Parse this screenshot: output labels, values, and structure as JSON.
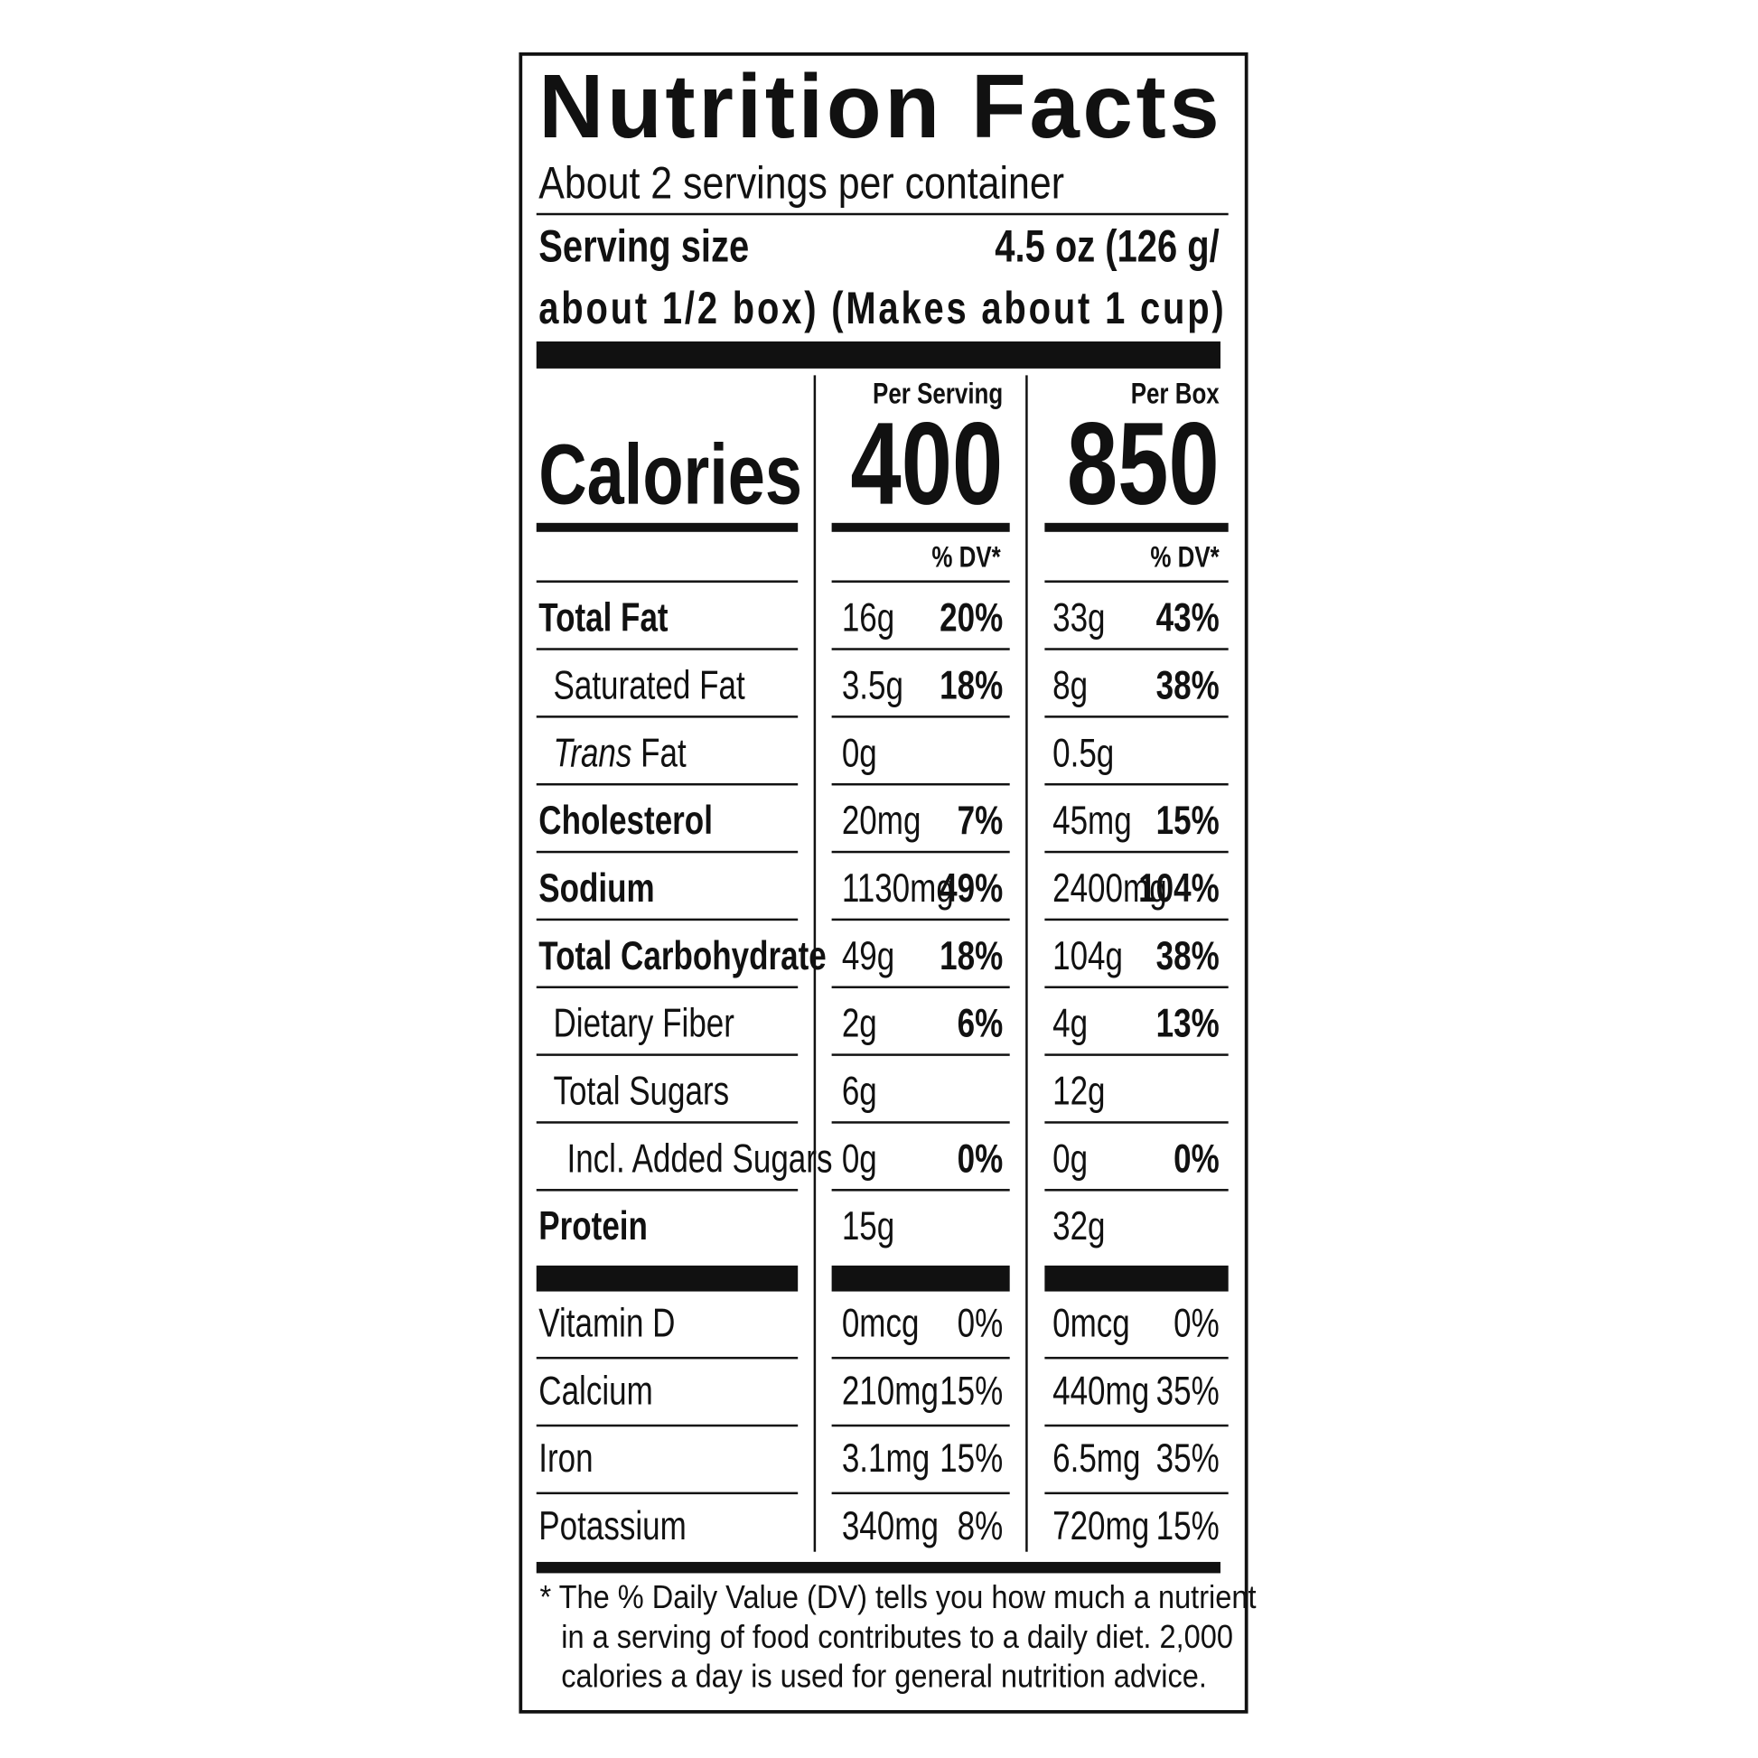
{
  "title": "Nutrition Facts",
  "servings": "About 2 servings per container",
  "serving_size": {
    "label": "Serving size",
    "value_line1": "4.5 oz (126 g/",
    "value_line2": "about 1/2 box) (Makes about 1 cup)"
  },
  "columns": [
    "Per Serving",
    "Per Box"
  ],
  "calories": {
    "label": "Calories",
    "values": [
      400,
      850
    ]
  },
  "dv_headers": [
    "% DV*",
    "% DV*"
  ],
  "nutrients": [
    {
      "label": "Total Fat",
      "bold": true,
      "indent": 0,
      "per_serving": {
        "amount": "16g",
        "dv": "20%"
      },
      "per_box": {
        "amount": "33g",
        "dv": "43%"
      }
    },
    {
      "label": "Saturated Fat",
      "bold": false,
      "indent": 1,
      "per_serving": {
        "amount": "3.5g",
        "dv": "18%"
      },
      "per_box": {
        "amount": "8g",
        "dv": "38%"
      }
    },
    {
      "label_italic": "Trans",
      "label": "Fat",
      "bold": false,
      "indent": 1,
      "per_serving": {
        "amount": "0g"
      },
      "per_box": {
        "amount": "0.5g"
      }
    },
    {
      "label": "Cholesterol",
      "bold": true,
      "indent": 0,
      "per_serving": {
        "amount": "20mg",
        "dv": "7%"
      },
      "per_box": {
        "amount": "45mg",
        "dv": "15%"
      }
    },
    {
      "label": "Sodium",
      "bold": true,
      "indent": 0,
      "per_serving": {
        "amount": "1130mg",
        "dv": "49%"
      },
      "per_box": {
        "amount": "2400mg",
        "dv": "104%"
      }
    },
    {
      "label": "Total Carbohydrate",
      "bold": true,
      "indent": 0,
      "per_serving": {
        "amount": "49g",
        "dv": "18%"
      },
      "per_box": {
        "amount": "104g",
        "dv": "38%"
      }
    },
    {
      "label": "Dietary Fiber",
      "bold": false,
      "indent": 1,
      "per_serving": {
        "amount": "2g",
        "dv": "6%"
      },
      "per_box": {
        "amount": "4g",
        "dv": "13%"
      }
    },
    {
      "label": "Total Sugars",
      "bold": false,
      "indent": 1,
      "per_serving": {
        "amount": "6g"
      },
      "per_box": {
        "amount": "12g"
      }
    },
    {
      "label": "Incl. Added Sugars",
      "bold": false,
      "indent": 2,
      "per_serving": {
        "amount": "0g",
        "dv": "0%"
      },
      "per_box": {
        "amount": "0g",
        "dv": "0%"
      }
    },
    {
      "label": "Protein",
      "bold": true,
      "indent": 0,
      "per_serving": {
        "amount": "15g"
      },
      "per_box": {
        "amount": "32g"
      }
    }
  ],
  "micronutrients": [
    {
      "label": "Vitamin D",
      "per_serving": {
        "amount": "0mcg",
        "dv": "0%"
      },
      "per_box": {
        "amount": "0mcg",
        "dv": "0%"
      }
    },
    {
      "label": "Calcium",
      "per_serving": {
        "amount": "210mg",
        "dv": "15%"
      },
      "per_box": {
        "amount": "440mg",
        "dv": "35%"
      }
    },
    {
      "label": "Iron",
      "per_serving": {
        "amount": "3.1mg",
        "dv": "15%"
      },
      "per_box": {
        "amount": "6.5mg",
        "dv": "35%"
      }
    },
    {
      "label": "Potassium",
      "per_serving": {
        "amount": "340mg",
        "dv": "8%"
      },
      "per_box": {
        "amount": "720mg",
        "dv": "15%"
      }
    }
  ],
  "footnote": [
    "* The % Daily Value (DV) tells you how much a nutrient",
    "in a serving of food contributes to a daily diet. 2,000",
    "calories a day is used for general nutrition advice."
  ]
}
